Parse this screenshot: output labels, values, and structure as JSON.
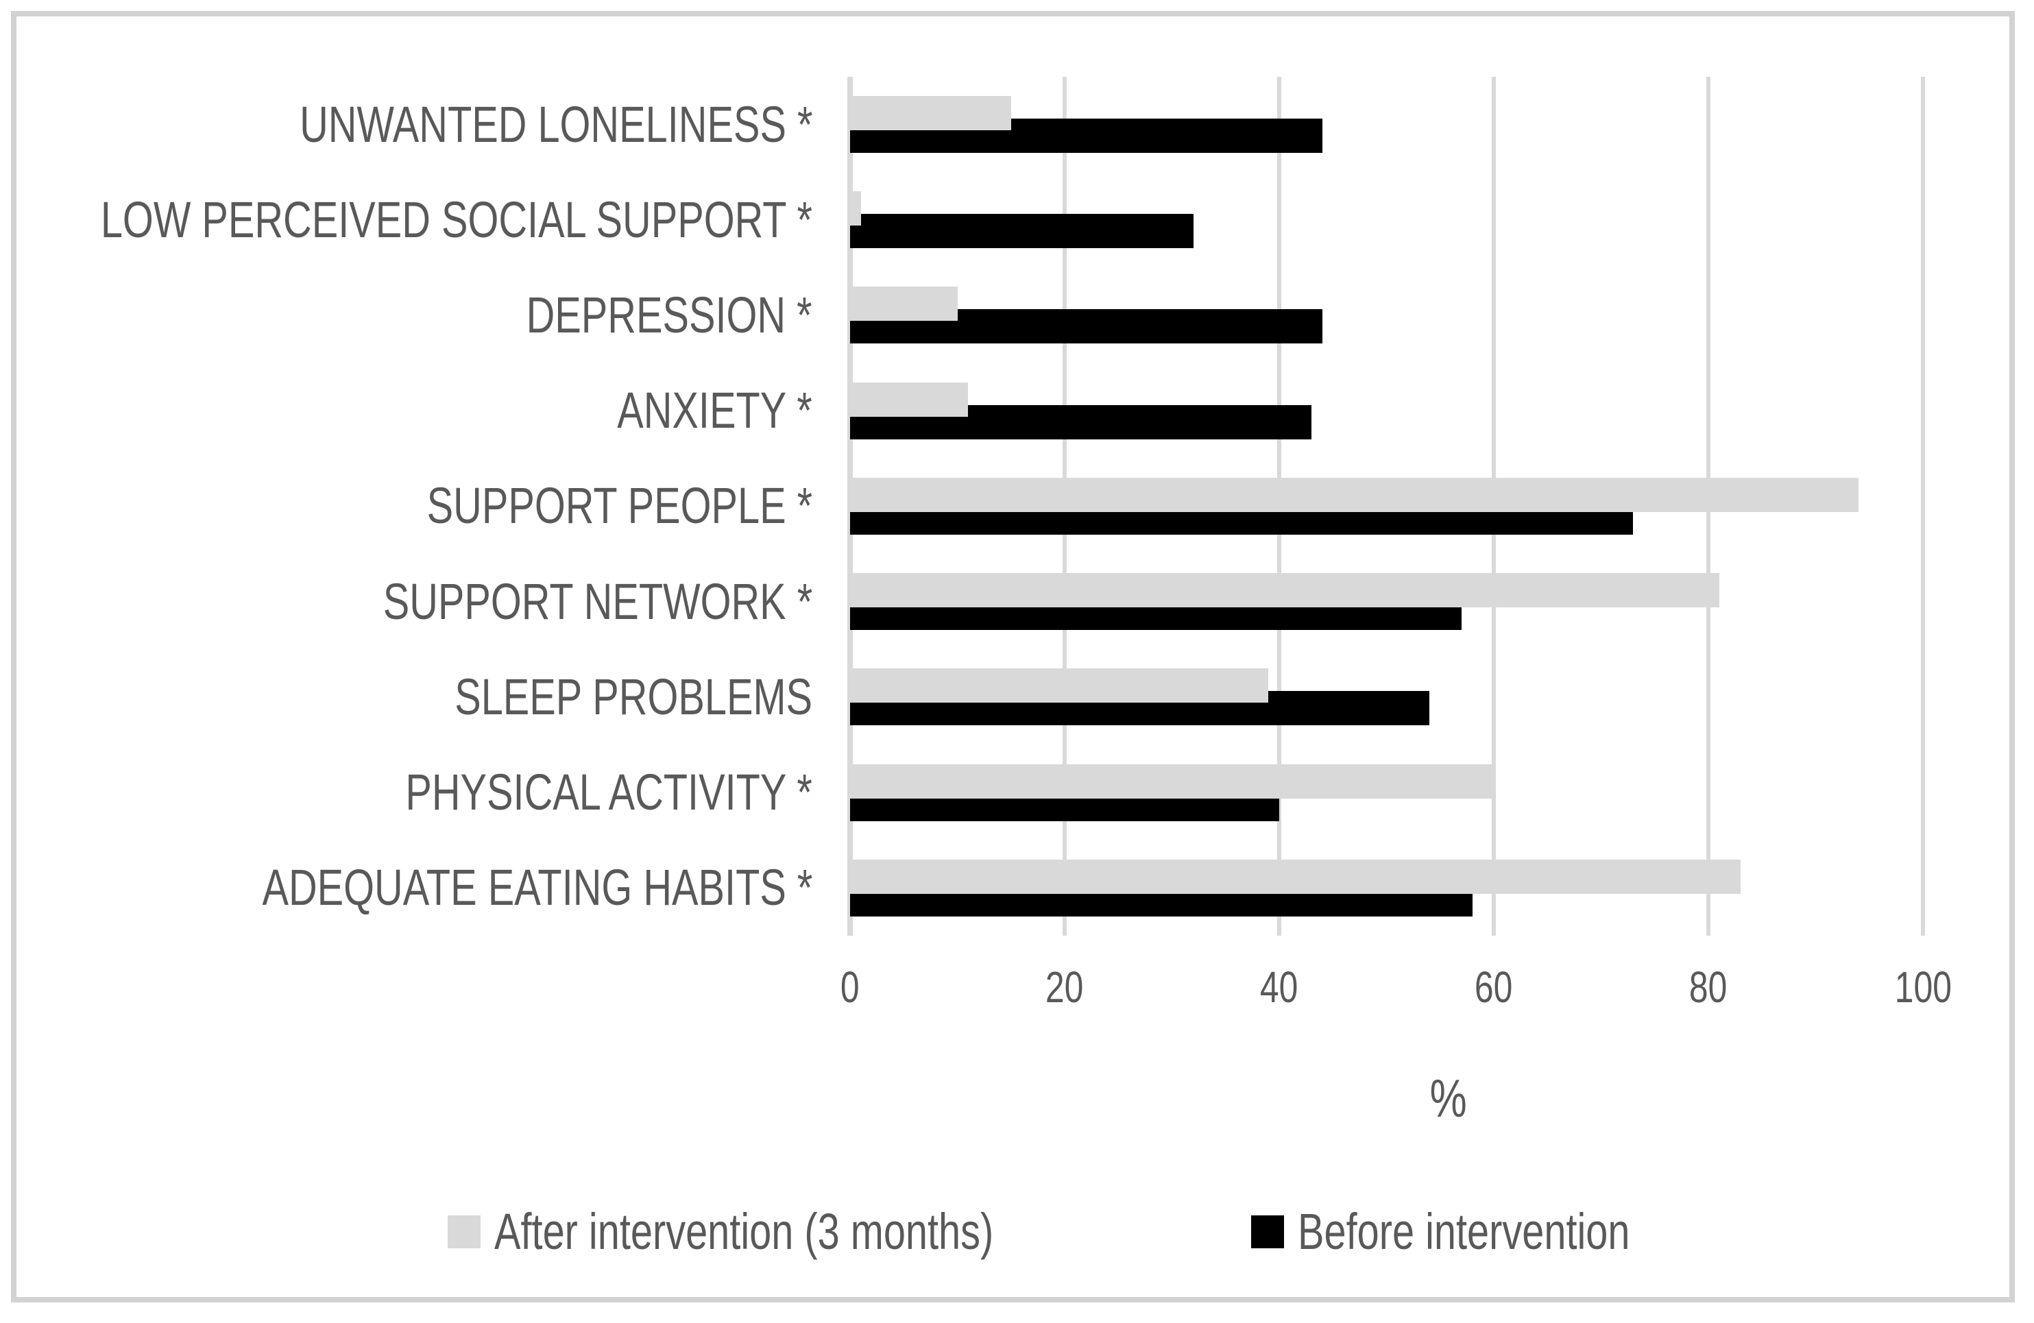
{
  "chart_data": {
    "type": "bar",
    "orientation": "horizontal",
    "title": "",
    "categories": [
      "UNWANTED LONELINESS *",
      "LOW PERCEIVED SOCIAL SUPPORT *",
      "DEPRESSION *",
      "ANXIETY *",
      "SUPPORT PEOPLE *",
      "SUPPORT NETWORK *",
      "SLEEP PROBLEMS",
      "PHYSICAL ACTIVITY *",
      "ADEQUATE EATING HABITS *"
    ],
    "series": [
      {
        "name": "After intervention (3 months)",
        "color": "#d9d9d9",
        "values": [
          15,
          1,
          10,
          11,
          94,
          81,
          39,
          60,
          83
        ]
      },
      {
        "name": "Before intervention",
        "color": "#000000",
        "values": [
          44,
          32,
          44,
          43,
          73,
          57,
          54,
          40,
          58
        ]
      }
    ],
    "xlabel": "%",
    "xlim": [
      0,
      100
    ],
    "xticks": [
      0,
      20,
      40,
      60,
      80,
      100
    ],
    "grid": "vertical-only",
    "legend_position": "bottom"
  },
  "colors": {
    "gridline": "#d9d9d9",
    "axis_text": "#595959",
    "frame_border": "#d2d2d2",
    "background": "#ffffff"
  }
}
